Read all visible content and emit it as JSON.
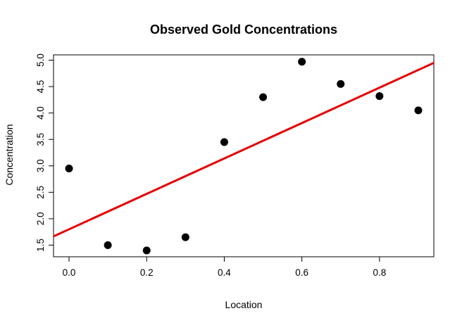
{
  "chart_data": {
    "type": "scatter",
    "title": "Observed Gold Concentrations",
    "xlabel": "Location",
    "ylabel": "Concentration",
    "xlim": [
      -0.04,
      0.94
    ],
    "ylim": [
      1.28,
      5.1
    ],
    "x_ticks": [
      "0.0",
      "0.2",
      "0.4",
      "0.6",
      "0.8"
    ],
    "y_ticks": [
      "1.5",
      "2.0",
      "2.5",
      "3.0",
      "3.5",
      "4.0",
      "4.5",
      "5.0"
    ],
    "grid": false,
    "legend": "none",
    "points": {
      "x": [
        0.0,
        0.1,
        0.2,
        0.3,
        0.4,
        0.5,
        0.6,
        0.7,
        0.8,
        0.9
      ],
      "y": [
        2.95,
        1.5,
        1.4,
        1.65,
        3.45,
        4.3,
        4.97,
        4.55,
        4.32,
        4.05
      ],
      "color": "#000000"
    },
    "fit_line": {
      "intercept": 1.8,
      "slope": 3.35,
      "color": "#e60000"
    }
  }
}
